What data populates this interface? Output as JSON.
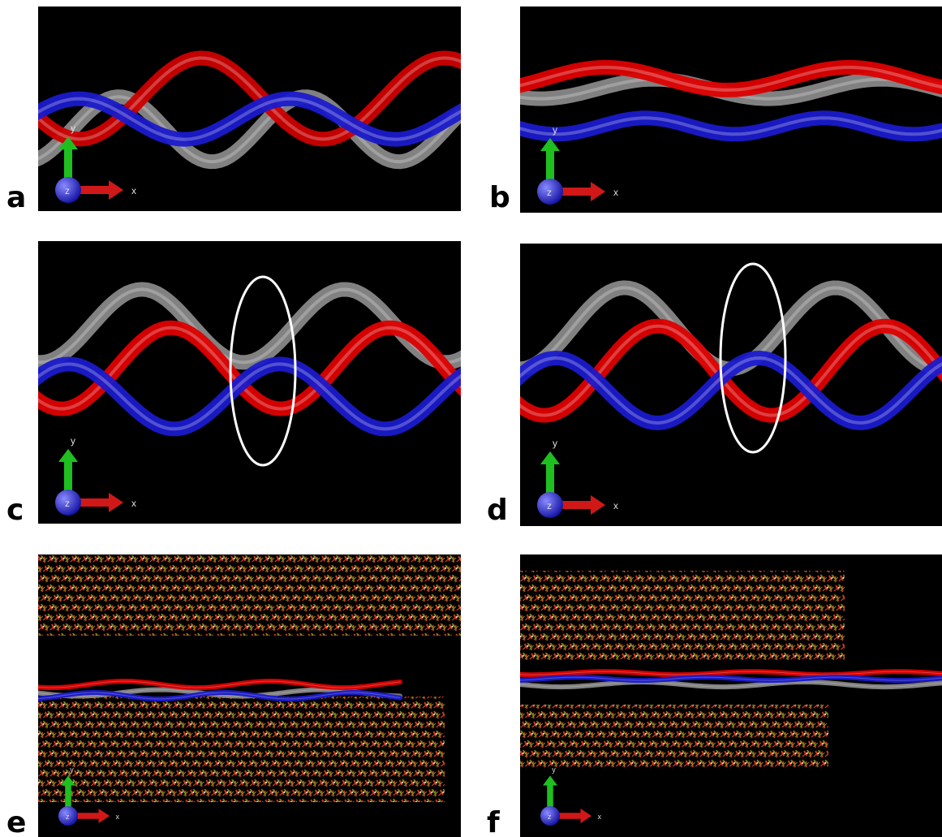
{
  "panels": [
    {
      "label": "a",
      "axes": {
        "x": "x",
        "y": "y",
        "z": "z"
      }
    },
    {
      "label": "b",
      "axes": {
        "x": "x",
        "y": "y",
        "z": "z"
      }
    },
    {
      "label": "c",
      "axes": {
        "x": "x",
        "y": "y",
        "z": "z"
      }
    },
    {
      "label": "d",
      "axes": {
        "x": "x",
        "y": "y",
        "z": "z"
      }
    },
    {
      "label": "e",
      "axes": {
        "x": "x",
        "y": "y",
        "z": "z"
      }
    },
    {
      "label": "f",
      "axes": {
        "x": "x",
        "y": "y",
        "z": "z"
      }
    }
  ]
}
